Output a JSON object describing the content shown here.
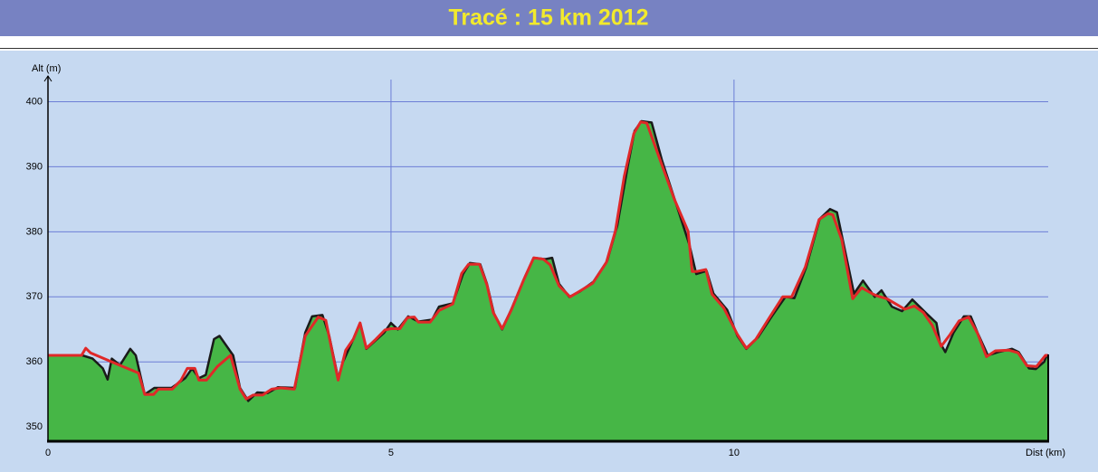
{
  "chart_data": {
    "type": "area",
    "title": "Tracé : 15 km 2012",
    "x_label": "Dist (km)",
    "y_label": "Alt (m)",
    "xlim": [
      0,
      14.58
    ],
    "ylim": [
      347.8,
      403.4
    ],
    "xticks": [
      0,
      5,
      10
    ],
    "yticks": [
      350,
      360,
      370,
      380,
      390,
      400
    ],
    "grid": true,
    "series": [
      {
        "kind": "area",
        "color": "#46b646",
        "edge_color": "#1a1a1a",
        "x": [
          0,
          0.5,
          0.65,
          0.8,
          0.87,
          0.93,
          1.05,
          1.2,
          1.28,
          1.41,
          1.55,
          1.8,
          2.0,
          2.1,
          2.2,
          2.3,
          2.42,
          2.5,
          2.7,
          2.8,
          2.92,
          3.05,
          3.2,
          3.35,
          3.6,
          3.75,
          3.85,
          4.0,
          4.1,
          4.23,
          4.3,
          4.45,
          4.55,
          4.64,
          4.9,
          5.0,
          5.1,
          5.25,
          5.4,
          5.6,
          5.7,
          5.9,
          6.05,
          6.15,
          6.3,
          6.4,
          6.5,
          6.62,
          6.75,
          6.95,
          7.08,
          7.25,
          7.35,
          7.45,
          7.6,
          7.75,
          7.95,
          8.15,
          8.3,
          8.45,
          8.55,
          8.65,
          8.8,
          8.95,
          9.15,
          9.35,
          9.45,
          9.6,
          9.7,
          9.9,
          10.05,
          10.18,
          10.35,
          10.55,
          10.75,
          10.88,
          11.05,
          11.25,
          11.4,
          11.5,
          11.62,
          11.75,
          11.88,
          12.05,
          12.15,
          12.3,
          12.45,
          12.6,
          12.8,
          12.95,
          13.0,
          13.08,
          13.2,
          13.35,
          13.45,
          13.55,
          13.7,
          13.85,
          14.05,
          14.15,
          14.3,
          14.4,
          14.52,
          14.56,
          14.58
        ],
        "values": [
          361,
          361,
          360.5,
          359,
          357.3,
          360.5,
          359.5,
          362,
          361,
          355,
          356,
          356,
          357.5,
          359,
          357.5,
          358,
          363.5,
          364,
          361,
          356,
          354,
          355.3,
          355.2,
          356.1,
          356,
          364.5,
          367,
          367.2,
          364,
          357.5,
          360,
          363.5,
          366,
          362,
          364.5,
          366,
          365,
          367,
          366.2,
          366.5,
          368.5,
          369,
          373.5,
          375.2,
          375,
          372,
          367.5,
          365,
          368,
          373,
          376,
          375.8,
          376,
          372,
          370,
          370.8,
          372.3,
          375.5,
          381,
          390,
          395.5,
          397,
          396.8,
          391,
          384.5,
          378,
          373.5,
          374,
          370.5,
          368,
          364,
          362,
          363.8,
          367,
          370,
          369.8,
          374.5,
          382,
          383.5,
          383,
          377,
          370.5,
          372.5,
          370,
          371,
          368.5,
          367.8,
          369.6,
          367.5,
          366,
          363,
          361.5,
          364.5,
          367,
          367,
          364.5,
          361,
          361.5,
          362,
          361.5,
          359,
          358.9,
          360,
          361,
          361
        ]
      },
      {
        "kind": "line",
        "color": "#e02828",
        "x": [
          0,
          0.49,
          0.55,
          0.62,
          1.02,
          1.32,
          1.41,
          1.54,
          1.61,
          1.81,
          1.94,
          2.03,
          2.14,
          2.2,
          2.31,
          2.47,
          2.66,
          2.8,
          2.89,
          2.99,
          3.13,
          3.26,
          3.39,
          3.59,
          3.75,
          3.94,
          4.05,
          4.16,
          4.23,
          4.34,
          4.45,
          4.55,
          4.64,
          4.78,
          4.91,
          5.0,
          5.13,
          5.24,
          5.34,
          5.4,
          5.57,
          5.7,
          5.9,
          6.03,
          6.13,
          6.29,
          6.4,
          6.49,
          6.62,
          6.75,
          6.93,
          7.08,
          7.22,
          7.32,
          7.45,
          7.61,
          7.74,
          7.94,
          8.14,
          8.27,
          8.4,
          8.54,
          8.64,
          8.73,
          8.87,
          9.13,
          9.33,
          9.39,
          9.46,
          9.59,
          9.68,
          9.85,
          10.05,
          10.18,
          10.32,
          10.51,
          10.71,
          10.84,
          11.04,
          11.24,
          11.37,
          11.44,
          11.57,
          11.73,
          11.86,
          12.03,
          12.1,
          12.23,
          12.36,
          12.49,
          12.63,
          12.76,
          12.89,
          13.02,
          13.15,
          13.28,
          13.42,
          13.55,
          13.68,
          13.81,
          14.01,
          14.14,
          14.27,
          14.41,
          14.54,
          14.58
        ],
        "values": [
          361,
          361,
          362.1,
          361.4,
          359.6,
          358.3,
          355,
          355,
          355.8,
          355.8,
          357.2,
          359,
          359,
          357.2,
          357.2,
          359.3,
          361,
          355.8,
          354.3,
          354.9,
          354.9,
          355.8,
          356,
          355.8,
          364,
          366.9,
          366.4,
          360.7,
          357.2,
          361.8,
          363.5,
          366,
          362.1,
          363.5,
          364.9,
          365.1,
          365.1,
          366.8,
          366.9,
          366.1,
          366.1,
          367.9,
          368.9,
          373.6,
          375,
          375,
          371.8,
          367.6,
          365.1,
          367.9,
          372.5,
          376,
          375.8,
          374.9,
          371.7,
          370,
          370.8,
          372.1,
          375.3,
          380.1,
          388.5,
          395.1,
          396.9,
          396.7,
          392.6,
          385,
          380.1,
          373.9,
          373.9,
          374.2,
          370.4,
          368.3,
          364.2,
          362.1,
          363.5,
          366.7,
          370,
          370,
          374.6,
          381.9,
          382.8,
          382.6,
          378.8,
          369.7,
          371.4,
          370.4,
          370.1,
          369.7,
          368.9,
          368.1,
          368.6,
          367.6,
          365.6,
          362.4,
          364.2,
          366.3,
          366.9,
          364.4,
          360.8,
          361.7,
          361.8,
          361.4,
          359.4,
          359.3,
          361,
          361
        ]
      }
    ]
  }
}
